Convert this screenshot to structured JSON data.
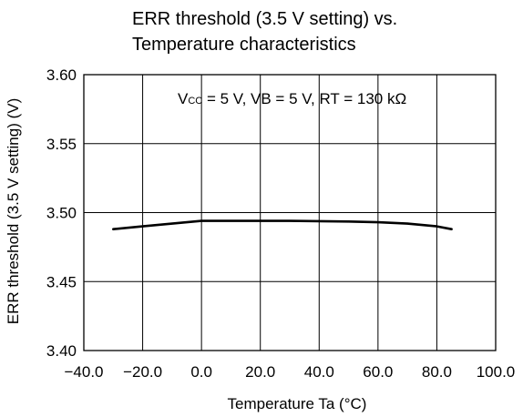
{
  "chart_data": {
    "type": "line",
    "title_lines": [
      "ERR threshold (3.5 V setting) vs.",
      "Temperature characteristics"
    ],
    "xlabel": "Temperature Ta (°C)",
    "ylabel": "ERR threshold (3.5 V setting) (V)",
    "annotation": {
      "vcc_main": "V",
      "vcc_sub": "CC",
      "rest": " = 5 V, VB = 5 V, RT = 130 kΩ"
    },
    "xlim": [
      -40,
      100
    ],
    "ylim": [
      3.4,
      3.6
    ],
    "x_ticks": [
      -40,
      -20,
      0,
      20,
      40,
      60,
      80,
      100
    ],
    "x_tick_labels": [
      "−40.0",
      "−20.0",
      "0.0",
      "20.0",
      "40.0",
      "60.0",
      "80.0",
      "100.0"
    ],
    "y_ticks": [
      3.4,
      3.45,
      3.5,
      3.55,
      3.6
    ],
    "y_tick_labels": [
      "3.40",
      "3.45",
      "3.50",
      "3.55",
      "3.60"
    ],
    "grid": true,
    "series": [
      {
        "x": [
          -30,
          -20,
          -10,
          0,
          10,
          20,
          30,
          40,
          50,
          60,
          70,
          80,
          85
        ],
        "y": [
          3.488,
          3.49,
          3.492,
          3.494,
          3.494,
          3.494,
          3.494,
          3.4938,
          3.4935,
          3.493,
          3.492,
          3.49,
          3.488
        ]
      }
    ]
  }
}
